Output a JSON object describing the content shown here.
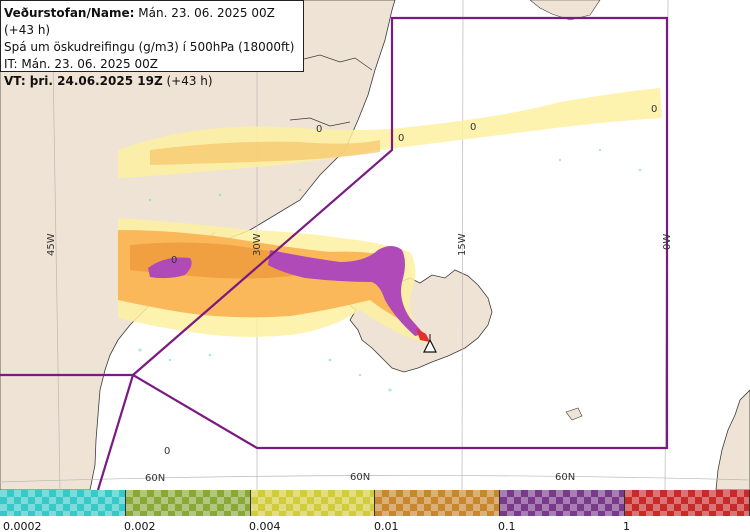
{
  "info": {
    "line1_bold": "Veðurstofan/Name:",
    "line1_rest": " Mán. 23. 06. 2025 00Z (+43 h)",
    "line2": "Spá um öskudreifingu (g/m3) í 500hPa (18000ft)",
    "line3": "IT: Mán. 23. 06. 2025 00Z",
    "line4_bold": "VT: þri. 24.06.2025 19Z",
    "line4_rest": " (+43 h)"
  },
  "graticule": {
    "lon_labels": [
      "45W",
      "30W",
      "15W",
      "0W"
    ],
    "lat_labels": [
      "60N",
      "60N",
      "60N"
    ]
  },
  "contour_labels": [
    "0",
    "0",
    "0",
    "0",
    "0",
    "0"
  ],
  "legend": {
    "colors": [
      "#37c8c8",
      "#88a838",
      "#d2cc3c",
      "#c8862e",
      "#7a3a8a",
      "#c82a2a"
    ],
    "ticks": [
      "0.0002",
      "0.002",
      "0.004",
      "0.01",
      "0.1",
      "1"
    ]
  },
  "colors": {
    "land": "#efe3d5",
    "boundary": "#7a1a82",
    "ash_low": "#fdf0a0",
    "ash_mid": "#fbb85a",
    "ash_high": "#f0a040",
    "ash_max": "#b04ab8",
    "ash_peak": "#e03030"
  }
}
